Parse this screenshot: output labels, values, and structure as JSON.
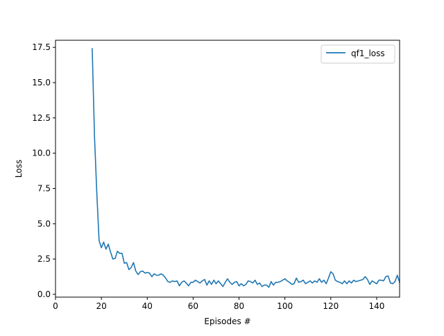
{
  "chart_data": {
    "type": "line",
    "title": "",
    "xlabel": "Episodes #",
    "ylabel": "Loss",
    "xlim": [
      0,
      150
    ],
    "ylim": [
      -0.2,
      18.0
    ],
    "grid": false,
    "legend_position": "top-right",
    "x_ticks": [
      0,
      20,
      40,
      60,
      80,
      100,
      120,
      140
    ],
    "x_tick_labels": [
      "0",
      "20",
      "40",
      "60",
      "80",
      "100",
      "120",
      "140"
    ],
    "y_ticks": [
      0.0,
      2.5,
      5.0,
      7.5,
      10.0,
      12.5,
      15.0,
      17.5
    ],
    "y_tick_labels": [
      "0.0",
      "2.5",
      "5.0",
      "7.5",
      "10.0",
      "12.5",
      "15.0",
      "17.5"
    ],
    "series": [
      {
        "name": "qf1_loss",
        "color": "#1f77b4",
        "x_start": 16,
        "values": [
          17.4,
          11.2,
          7.2,
          3.8,
          3.3,
          3.7,
          3.2,
          3.55,
          3.0,
          2.5,
          2.55,
          3.05,
          2.9,
          2.9,
          2.2,
          2.25,
          1.75,
          1.9,
          2.25,
          1.65,
          1.4,
          1.6,
          1.65,
          1.5,
          1.55,
          1.5,
          1.25,
          1.45,
          1.35,
          1.35,
          1.45,
          1.35,
          1.15,
          0.9,
          0.85,
          0.95,
          0.9,
          0.95,
          0.6,
          0.85,
          0.95,
          0.8,
          0.6,
          0.85,
          0.85,
          1.0,
          0.9,
          0.8,
          0.95,
          1.05,
          0.65,
          0.95,
          0.7,
          1.0,
          0.75,
          0.95,
          0.75,
          0.55,
          0.85,
          1.1,
          0.85,
          0.7,
          0.85,
          0.9,
          0.6,
          0.75,
          0.6,
          0.7,
          0.95,
          0.9,
          0.8,
          1.0,
          0.7,
          0.8,
          0.55,
          0.65,
          0.65,
          0.5,
          0.9,
          0.65,
          0.85,
          0.85,
          0.9,
          1.0,
          1.1,
          0.95,
          0.85,
          0.7,
          0.75,
          1.15,
          0.85,
          0.9,
          1.0,
          0.75,
          0.85,
          0.95,
          0.8,
          0.95,
          0.85,
          1.1,
          0.85,
          1.0,
          0.75,
          1.15,
          1.6,
          1.45,
          1.0,
          0.9,
          0.85,
          0.75,
          0.95,
          0.75,
          0.95,
          0.8,
          1.0,
          0.9,
          0.95,
          1.0,
          1.05,
          1.25,
          1.05,
          0.7,
          0.95,
          0.85,
          0.75,
          1.0,
          1.0,
          0.95,
          1.25,
          1.3,
          0.8,
          0.75,
          0.9,
          1.35,
          0.85
        ]
      }
    ]
  }
}
